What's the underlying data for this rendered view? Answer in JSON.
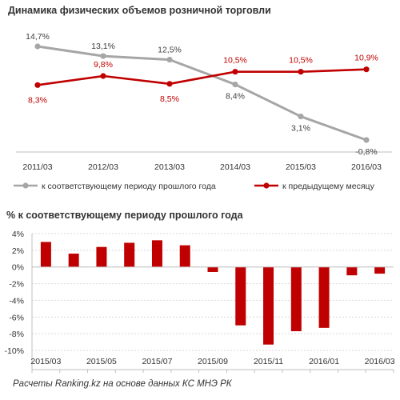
{
  "colors": {
    "gray": "#a6a6a6",
    "red": "#c00000",
    "axis": "#bfbfbf",
    "grid": "#d9d9d9",
    "text": "#333333"
  },
  "footer": "Расчеты Ranking.kz на основе данных КС МНЭ РК",
  "chart_data": [
    {
      "type": "line",
      "title": "Динамика физических объемов розничной торговли",
      "categories": [
        "2011/03",
        "2012/03",
        "2013/03",
        "2014/03",
        "2015/03",
        "2016/03"
      ],
      "legend_position": "bottom",
      "series": [
        {
          "name": "к соответствующему периоду прошлого года",
          "color": "#a6a6a6",
          "values": [
            14.7,
            13.1,
            12.5,
            8.4,
            3.1,
            -0.8
          ],
          "labels": [
            "14,7%",
            "13,1%",
            "12,5%",
            "8,4%",
            "3,1%",
            "-0,8%"
          ]
        },
        {
          "name": "к предыдущему месяцу",
          "color": "#c00000",
          "values": [
            8.3,
            9.8,
            8.5,
            10.5,
            10.5,
            10.9
          ],
          "labels": [
            "8,3%",
            "9,8%",
            "8,5%",
            "10,5%",
            "10,5%",
            "10,9%"
          ]
        }
      ]
    },
    {
      "type": "bar",
      "title": "% к соответствующему  периоду прошлого года",
      "x": [
        "2015/03",
        "2015/04",
        "2015/05",
        "2015/06",
        "2015/07",
        "2015/08",
        "2015/09",
        "2015/10",
        "2015/11",
        "2015/12",
        "2016/01",
        "2016/02",
        "2016/03"
      ],
      "xticklabels": [
        "2015/03",
        "",
        "2015/05",
        "",
        "2015/07",
        "",
        "2015/09",
        "",
        "2015/11",
        "",
        "2016/01",
        "",
        "2016/03"
      ],
      "values": [
        3.0,
        1.6,
        2.4,
        2.9,
        3.2,
        2.6,
        -0.6,
        -7.0,
        -9.3,
        -7.7,
        -7.3,
        -1.0,
        -0.8
      ],
      "color": "#c00000",
      "ylim": [
        -10,
        4
      ],
      "yticks": [
        4,
        2,
        0,
        -2,
        -4,
        -6,
        -8,
        -10
      ],
      "yticklabels": [
        "4%",
        "2%",
        "0%",
        "-2%",
        "-4%",
        "-6%",
        "-8%",
        "-10%"
      ],
      "grid": true
    }
  ]
}
